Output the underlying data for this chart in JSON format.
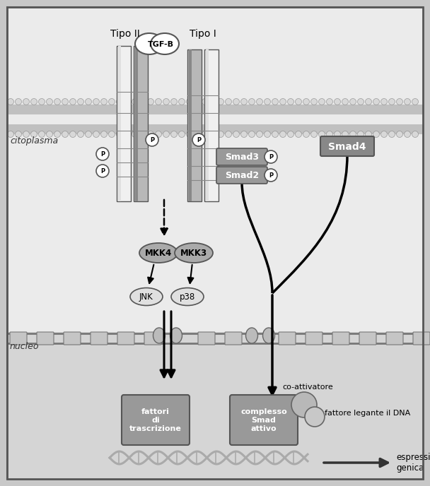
{
  "bg_outer": "#c8c8c8",
  "bg_cytoplasm": "#e8e8e8",
  "bg_nucleus": "#d0d0d0",
  "label_tipo2": "Tipo II",
  "label_tipo1": "Tipo I",
  "label_tgfb": "TGF-B",
  "label_citoplasma": "citoplasma",
  "label_nucleo": "nucleo",
  "label_smad3": "Smad3",
  "label_smad2": "Smad2",
  "label_smad4": "Smad4",
  "label_mkk4": "MKK4",
  "label_mkk3": "MKK3",
  "label_jnk": "JNK",
  "label_p38": "p38",
  "label_fattori": "fattori\ndi\ntrascrizione",
  "label_complesso": "complesso\nSmad\nattivo",
  "label_coattivatore": "co-attivatore",
  "label_fattore_dna": "fattore legante il DNA",
  "label_espressione": "espressione\ngenica"
}
